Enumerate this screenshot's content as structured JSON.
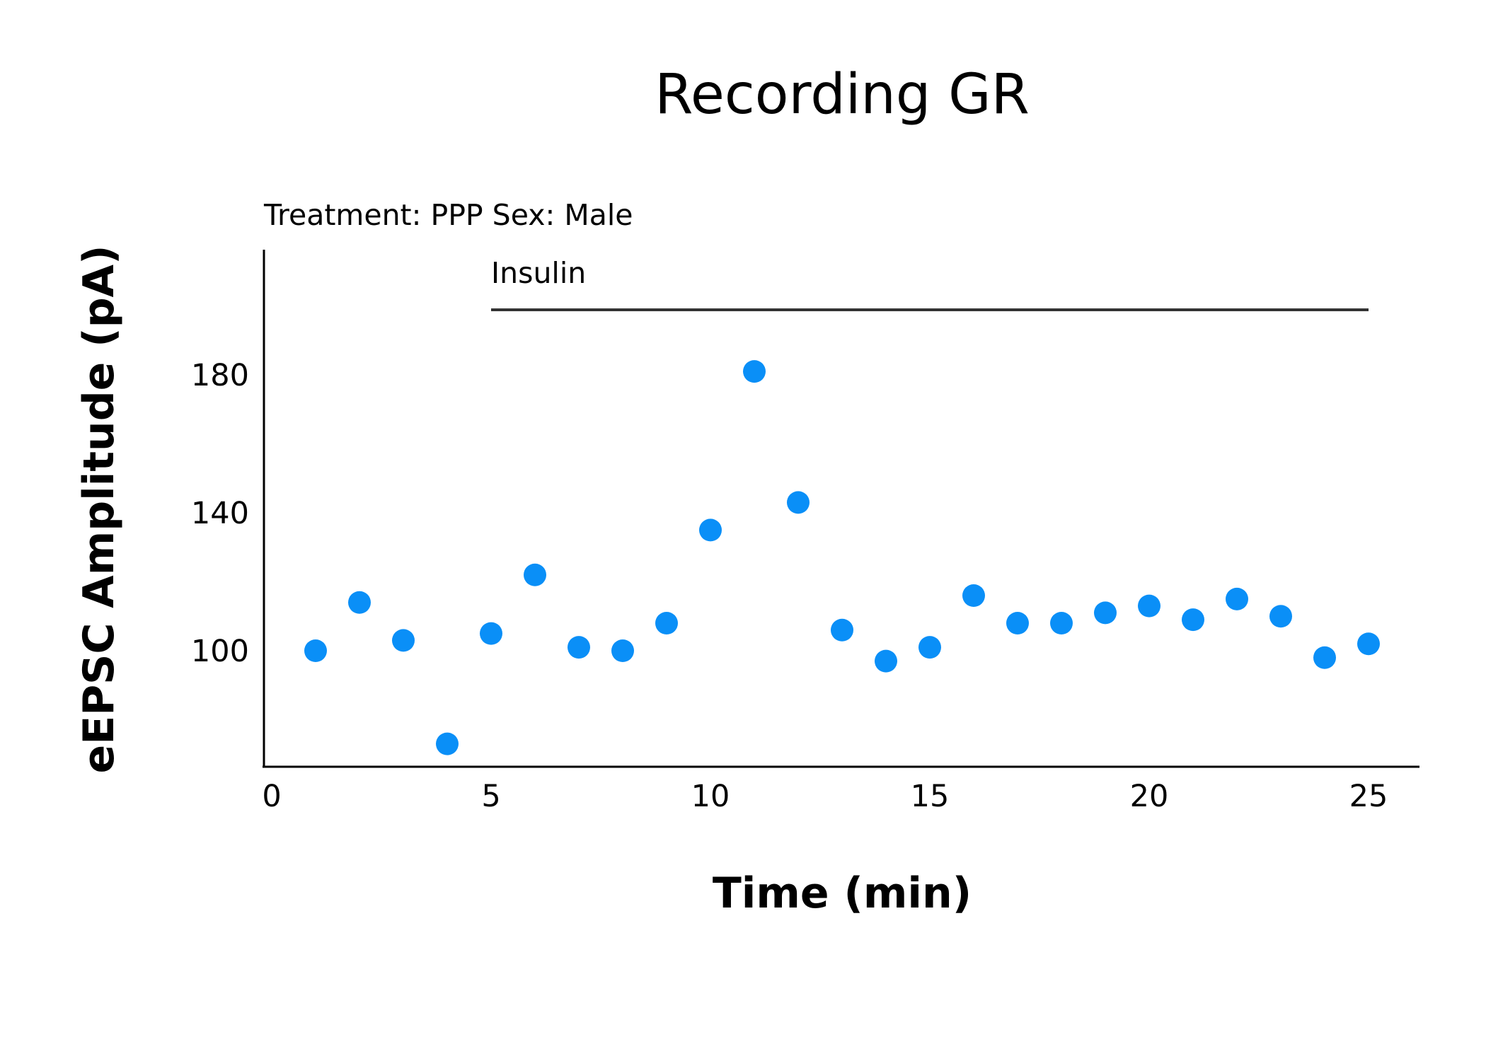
{
  "chart_data": {
    "type": "scatter",
    "title": "Recording GR",
    "subtitle": "Treatment: PPP  Sex: Male",
    "xlabel": "Time (min)",
    "ylabel": "eEPSC Amplitude (pA)",
    "xlim": [
      0,
      26
    ],
    "ylim": [
      67,
      185
    ],
    "xticks": [
      0,
      5,
      10,
      15,
      20,
      25
    ],
    "yticks": [
      100,
      140,
      180
    ],
    "grid": false,
    "point_color": "#0A8FF7",
    "annotation": {
      "label": "Insulin",
      "x_start": 5,
      "x_end": 25
    },
    "series": [
      {
        "x": [
          1,
          2,
          3,
          4,
          5,
          6,
          7,
          8,
          9,
          10,
          11,
          12,
          13,
          14,
          15,
          16,
          17,
          18,
          19,
          20,
          21,
          22,
          23,
          24,
          25
        ],
        "y": [
          100,
          114,
          103,
          73,
          105,
          122,
          101,
          100,
          108,
          135,
          181,
          143,
          106,
          97,
          101,
          116,
          108,
          108,
          111,
          113,
          109,
          115,
          110,
          98,
          102
        ]
      }
    ]
  }
}
